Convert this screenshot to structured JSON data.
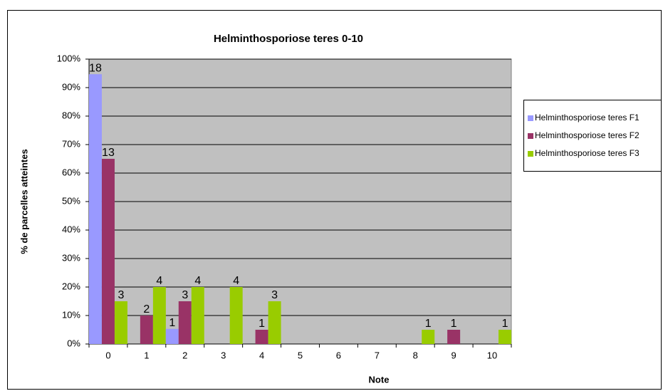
{
  "chart_data": {
    "type": "bar",
    "title": "Helminthosporiose teres 0-10",
    "x_label": "Note",
    "y_label": "% de parcelles atteintes",
    "categories": [
      "0",
      "1",
      "2",
      "3",
      "4",
      "5",
      "6",
      "7",
      "8",
      "9",
      "10"
    ],
    "series": [
      {
        "name": "Helminthosporiose teres F1",
        "color": "#9999ff",
        "values": [
          94.7,
          0,
          5.3,
          0,
          0,
          0,
          0,
          0,
          0,
          0,
          0
        ],
        "data_labels": [
          18,
          null,
          1,
          null,
          null,
          null,
          null,
          null,
          null,
          null,
          null
        ]
      },
      {
        "name": "Helminthosporiose teres F2",
        "color": "#993366",
        "values": [
          65,
          10,
          15,
          0,
          5,
          0,
          0,
          0,
          0,
          5,
          0
        ],
        "data_labels": [
          13,
          2,
          3,
          null,
          1,
          null,
          null,
          null,
          null,
          1,
          null
        ]
      },
      {
        "name": "Helminthosporiose teres F3",
        "color": "#99cc00",
        "values": [
          15,
          20,
          20,
          20,
          15,
          0,
          0,
          0,
          5,
          0,
          5
        ],
        "data_labels": [
          3,
          4,
          4,
          4,
          3,
          null,
          null,
          null,
          1,
          null,
          1
        ]
      }
    ],
    "ylim": [
      0,
      100
    ],
    "yticks": [
      {
        "value": 0,
        "label": "0%"
      },
      {
        "value": 10,
        "label": "10%"
      },
      {
        "value": 20,
        "label": "20%"
      },
      {
        "value": 30,
        "label": "30%"
      },
      {
        "value": 40,
        "label": "40%"
      },
      {
        "value": 50,
        "label": "50%"
      },
      {
        "value": 60,
        "label": "60%"
      },
      {
        "value": 70,
        "label": "70%"
      },
      {
        "value": 80,
        "label": "80%"
      },
      {
        "value": 90,
        "label": "90%"
      },
      {
        "value": 100,
        "label": "100%"
      }
    ],
    "grid": true,
    "legend": "right",
    "plot_background": "#c0c0c0"
  }
}
